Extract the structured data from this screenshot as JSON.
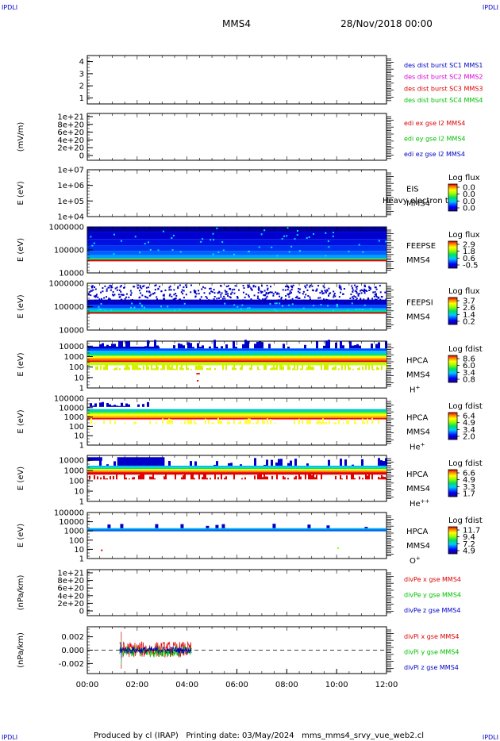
{
  "header": {
    "corner": "IPDLI",
    "title": "MMS4",
    "date": "28/Nov/2018 00:00"
  },
  "footer": {
    "text": "Produced by cl (IRAP)   Printing date: 03/May/2024   mms_mms4_srvy_vue_web2.cl"
  },
  "time_axis": {
    "ticks": [
      "00:00",
      "02:00",
      "04:00",
      "06:00",
      "08:00",
      "10:00",
      "12:00"
    ],
    "range_hours": [
      0,
      12
    ]
  },
  "colors": {
    "red": "#dd0000",
    "magenta": "#d400d4",
    "green": "#00c000",
    "blue": "#0000c8",
    "spectrum": [
      "#00008a",
      "#0000ff",
      "#00b0ff",
      "#00e080",
      "#80ff00",
      "#ffff00",
      "#ff8000",
      "#e00000"
    ]
  },
  "chart_data": [
    {
      "type": "line",
      "panel": "dist-burst",
      "ylabel": "",
      "yticks": [
        "4",
        "3",
        "2",
        "1"
      ],
      "ylim": [
        0.5,
        4.5
      ],
      "series": [],
      "legend": [
        {
          "text": "des dist burst SC1 MMS1",
          "color": "#0000c8"
        },
        {
          "text": "des dist burst SC2 MMS2",
          "color": "#d400d4"
        },
        {
          "text": "des dist burst SC3 MMS3",
          "color": "#dd0000"
        },
        {
          "text": "des dist burst SC4 MMS4",
          "color": "#00c000"
        }
      ]
    },
    {
      "type": "line",
      "panel": "edi-e",
      "ylabel": "(mV/m)",
      "yticks": [
        "1e+21",
        "8e+20",
        "6e+20",
        "4e+20",
        "2e+20",
        "0"
      ],
      "ylim": [
        0,
        1e+21
      ],
      "series": [],
      "legend": [
        {
          "text": "edi ex gse l2 MMS4",
          "color": "#dd0000"
        },
        {
          "text": "edi ey gse l2 MMS4",
          "color": "#00c000"
        },
        {
          "text": "edi ez gse l2 MMS4",
          "color": "#0000c8"
        }
      ]
    },
    {
      "type": "heatmap",
      "panel": "eis",
      "ylabel": "E (eV)",
      "yticks": [
        "1e+07",
        "1e+06",
        "1e+05",
        "1e+04"
      ],
      "ylim": [
        10000,
        10000000
      ],
      "instrument": "EIS",
      "spacecraft": "MMS4",
      "overlay": "Heavy electron tot",
      "colorbar": {
        "title": "Log flux",
        "ticks": [
          "0.0",
          "0.0",
          "0.0",
          "0.0"
        ]
      },
      "data_hours": []
    },
    {
      "type": "heatmap",
      "panel": "feepse",
      "ylabel": "E (eV)",
      "yticks": [
        "1000000",
        "100000",
        "10000"
      ],
      "ylim": [
        10000,
        1000000
      ],
      "instrument": "FEEPSE",
      "spacecraft": "MMS4",
      "colorbar": {
        "title": "Log flux",
        "ticks": [
          "2.9",
          "1.8",
          "0.6",
          "-0.5"
        ]
      },
      "data_hours": [
        0,
        12
      ]
    },
    {
      "type": "heatmap",
      "panel": "feepsi",
      "ylabel": "E (eV)",
      "yticks": [
        "1000000",
        "100000",
        "10000"
      ],
      "ylim": [
        10000,
        1000000
      ],
      "instrument": "FEEPSI",
      "spacecraft": "MMS4",
      "colorbar": {
        "title": "Log flux",
        "ticks": [
          "3.7",
          "2.6",
          "1.4",
          "0.2"
        ]
      },
      "data_hours": [
        0,
        12
      ]
    },
    {
      "type": "heatmap",
      "panel": "hpca-h",
      "ylabel": "E (eV)",
      "yticks": [
        "10000",
        "1000",
        "100",
        "10",
        "1"
      ],
      "ylim": [
        1,
        30000
      ],
      "instrument": "HPCA",
      "spacecraft": "MMS4",
      "species": "H",
      "charge": "+",
      "colorbar": {
        "title": "Log fdist",
        "ticks": [
          "8.6",
          "6.0",
          "3.4",
          "0.8"
        ]
      },
      "data_hours": [
        0,
        12
      ]
    },
    {
      "type": "heatmap",
      "panel": "hpca-he",
      "ylabel": "E (eV)",
      "yticks": [
        "100000",
        "10000",
        "1000",
        "100",
        "10",
        "1"
      ],
      "ylim": [
        1,
        100000
      ],
      "instrument": "HPCA",
      "spacecraft": "MMS4",
      "species": "He",
      "charge": "+",
      "colorbar": {
        "title": "Log fdist",
        "ticks": [
          "6.4",
          "4.9",
          "3.4",
          "2.0"
        ]
      },
      "data_hours": [
        0,
        12
      ]
    },
    {
      "type": "heatmap",
      "panel": "hpca-hepp",
      "ylabel": "E (eV)",
      "yticks": [
        "10000",
        "1000",
        "100",
        "10",
        "1"
      ],
      "ylim": [
        1,
        30000
      ],
      "instrument": "HPCA",
      "spacecraft": "MMS4",
      "species": "He",
      "charge": "++",
      "colorbar": {
        "title": "Log fdist",
        "ticks": [
          "6.6",
          "4.9",
          "3.3",
          "1.7"
        ]
      },
      "data_hours": [
        0,
        12
      ]
    },
    {
      "type": "heatmap",
      "panel": "hpca-o",
      "ylabel": "E (eV)",
      "yticks": [
        "100000",
        "10000",
        "1000",
        "100",
        "10",
        "1"
      ],
      "ylim": [
        1,
        100000
      ],
      "instrument": "HPCA",
      "spacecraft": "MMS4",
      "species": "O",
      "charge": "+",
      "colorbar": {
        "title": "Log fdist",
        "ticks": [
          "11.7",
          "9.4",
          "7.2",
          "4.9"
        ]
      },
      "data_hours": [
        0,
        12
      ]
    },
    {
      "type": "line",
      "panel": "divpe",
      "ylabel": "(nPa/km)",
      "yticks": [
        "1e+21",
        "8e+20",
        "6e+20",
        "4e+20",
        "2e+20",
        "0"
      ],
      "ylim": [
        0,
        1e+21
      ],
      "series": [],
      "legend": [
        {
          "text": "divPe x gse MMS4",
          "color": "#dd0000"
        },
        {
          "text": "divPe y gse MMS4",
          "color": "#00c000"
        },
        {
          "text": "divPe z gse MMS4",
          "color": "#0000c8"
        }
      ]
    },
    {
      "type": "line",
      "panel": "divpi",
      "ylabel": "(nPa/km)",
      "yticks": [
        "0.002",
        "0.000",
        "-0.002"
      ],
      "ylim": [
        -0.0035,
        0.0035
      ],
      "data_hours": [
        1.3,
        4.2
      ],
      "series": [
        {
          "name": "divPi x gse MMS4",
          "color": "#dd0000",
          "mean": 0.0001,
          "spread": 0.0012
        },
        {
          "name": "divPi y gse MMS4",
          "color": "#00c000",
          "mean": -0.0002,
          "spread": 0.0008
        },
        {
          "name": "divPi z gse MMS4",
          "color": "#0000c8",
          "mean": 0.0,
          "spread": 0.0005
        }
      ],
      "legend": [
        {
          "text": "divPi x gse MMS4",
          "color": "#dd0000"
        },
        {
          "text": "divPi y gse MMS4",
          "color": "#00c000"
        },
        {
          "text": "divPi z gse MMS4",
          "color": "#0000c8"
        }
      ]
    }
  ]
}
